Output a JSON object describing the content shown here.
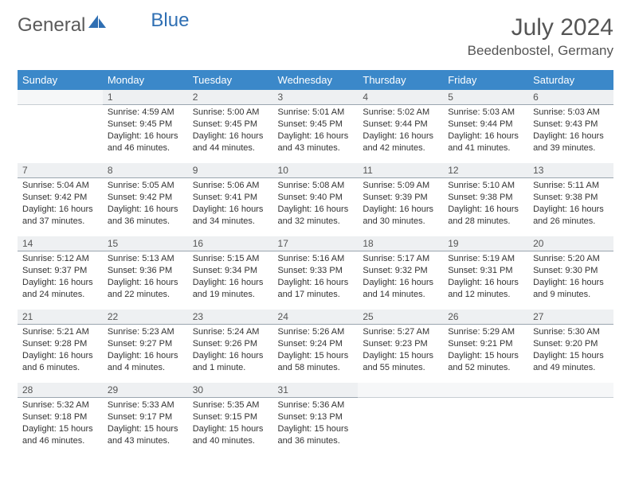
{
  "logo": {
    "part1": "General",
    "part2": "Blue"
  },
  "title": "July 2024",
  "location": "Beedenbostel, Germany",
  "colors": {
    "header_bg": "#3b88c9",
    "daynum_bg": "#eef0f2",
    "daynum_border": "#9aa5af",
    "text": "#333333",
    "title_text": "#555555"
  },
  "weekdays": [
    "Sunday",
    "Monday",
    "Tuesday",
    "Wednesday",
    "Thursday",
    "Friday",
    "Saturday"
  ],
  "start_offset": 1,
  "days": [
    {
      "n": 1,
      "sunrise": "4:59 AM",
      "sunset": "9:45 PM",
      "daylight": "16 hours and 46 minutes."
    },
    {
      "n": 2,
      "sunrise": "5:00 AM",
      "sunset": "9:45 PM",
      "daylight": "16 hours and 44 minutes."
    },
    {
      "n": 3,
      "sunrise": "5:01 AM",
      "sunset": "9:45 PM",
      "daylight": "16 hours and 43 minutes."
    },
    {
      "n": 4,
      "sunrise": "5:02 AM",
      "sunset": "9:44 PM",
      "daylight": "16 hours and 42 minutes."
    },
    {
      "n": 5,
      "sunrise": "5:03 AM",
      "sunset": "9:44 PM",
      "daylight": "16 hours and 41 minutes."
    },
    {
      "n": 6,
      "sunrise": "5:03 AM",
      "sunset": "9:43 PM",
      "daylight": "16 hours and 39 minutes."
    },
    {
      "n": 7,
      "sunrise": "5:04 AM",
      "sunset": "9:42 PM",
      "daylight": "16 hours and 37 minutes."
    },
    {
      "n": 8,
      "sunrise": "5:05 AM",
      "sunset": "9:42 PM",
      "daylight": "16 hours and 36 minutes."
    },
    {
      "n": 9,
      "sunrise": "5:06 AM",
      "sunset": "9:41 PM",
      "daylight": "16 hours and 34 minutes."
    },
    {
      "n": 10,
      "sunrise": "5:08 AM",
      "sunset": "9:40 PM",
      "daylight": "16 hours and 32 minutes."
    },
    {
      "n": 11,
      "sunrise": "5:09 AM",
      "sunset": "9:39 PM",
      "daylight": "16 hours and 30 minutes."
    },
    {
      "n": 12,
      "sunrise": "5:10 AM",
      "sunset": "9:38 PM",
      "daylight": "16 hours and 28 minutes."
    },
    {
      "n": 13,
      "sunrise": "5:11 AM",
      "sunset": "9:38 PM",
      "daylight": "16 hours and 26 minutes."
    },
    {
      "n": 14,
      "sunrise": "5:12 AM",
      "sunset": "9:37 PM",
      "daylight": "16 hours and 24 minutes."
    },
    {
      "n": 15,
      "sunrise": "5:13 AM",
      "sunset": "9:36 PM",
      "daylight": "16 hours and 22 minutes."
    },
    {
      "n": 16,
      "sunrise": "5:15 AM",
      "sunset": "9:34 PM",
      "daylight": "16 hours and 19 minutes."
    },
    {
      "n": 17,
      "sunrise": "5:16 AM",
      "sunset": "9:33 PM",
      "daylight": "16 hours and 17 minutes."
    },
    {
      "n": 18,
      "sunrise": "5:17 AM",
      "sunset": "9:32 PM",
      "daylight": "16 hours and 14 minutes."
    },
    {
      "n": 19,
      "sunrise": "5:19 AM",
      "sunset": "9:31 PM",
      "daylight": "16 hours and 12 minutes."
    },
    {
      "n": 20,
      "sunrise": "5:20 AM",
      "sunset": "9:30 PM",
      "daylight": "16 hours and 9 minutes."
    },
    {
      "n": 21,
      "sunrise": "5:21 AM",
      "sunset": "9:28 PM",
      "daylight": "16 hours and 6 minutes."
    },
    {
      "n": 22,
      "sunrise": "5:23 AM",
      "sunset": "9:27 PM",
      "daylight": "16 hours and 4 minutes."
    },
    {
      "n": 23,
      "sunrise": "5:24 AM",
      "sunset": "9:26 PM",
      "daylight": "16 hours and 1 minute."
    },
    {
      "n": 24,
      "sunrise": "5:26 AM",
      "sunset": "9:24 PM",
      "daylight": "15 hours and 58 minutes."
    },
    {
      "n": 25,
      "sunrise": "5:27 AM",
      "sunset": "9:23 PM",
      "daylight": "15 hours and 55 minutes."
    },
    {
      "n": 26,
      "sunrise": "5:29 AM",
      "sunset": "9:21 PM",
      "daylight": "15 hours and 52 minutes."
    },
    {
      "n": 27,
      "sunrise": "5:30 AM",
      "sunset": "9:20 PM",
      "daylight": "15 hours and 49 minutes."
    },
    {
      "n": 28,
      "sunrise": "5:32 AM",
      "sunset": "9:18 PM",
      "daylight": "15 hours and 46 minutes."
    },
    {
      "n": 29,
      "sunrise": "5:33 AM",
      "sunset": "9:17 PM",
      "daylight": "15 hours and 43 minutes."
    },
    {
      "n": 30,
      "sunrise": "5:35 AM",
      "sunset": "9:15 PM",
      "daylight": "15 hours and 40 minutes."
    },
    {
      "n": 31,
      "sunrise": "5:36 AM",
      "sunset": "9:13 PM",
      "daylight": "15 hours and 36 minutes."
    }
  ],
  "labels": {
    "sunrise": "Sunrise: ",
    "sunset": "Sunset: ",
    "daylight": "Daylight: "
  }
}
